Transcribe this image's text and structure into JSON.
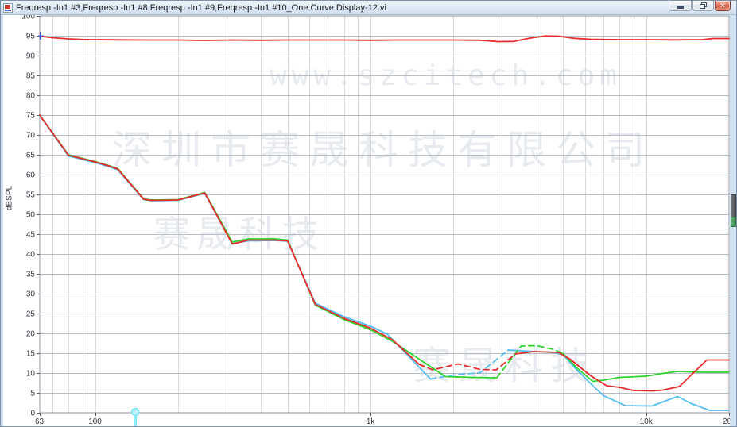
{
  "window": {
    "title": "Freqresp -In1 #3,Freqresp -In1 #8,Freqresp -In1 #9,Freqresp -In1 #10_One Curve Display-12.vi",
    "controls": [
      "minimize",
      "restore",
      "close"
    ]
  },
  "watermarks": {
    "url": "www.szcitech.com",
    "company": "深圳市赛晟科技有限公司",
    "brand1": "赛晟科技",
    "brand2": "赛晟科技"
  },
  "chart_data": {
    "type": "line",
    "x_axis": {
      "scale": "log",
      "min": 63,
      "max": 20000,
      "tick_values": [
        63,
        100,
        1000,
        10000,
        20000
      ],
      "tick_labels": [
        "63",
        "100",
        "1k",
        "10k",
        "20k"
      ],
      "gridlines": [
        70,
        80,
        90,
        100,
        200,
        300,
        400,
        500,
        600,
        700,
        800,
        900,
        1000,
        2000,
        3000,
        4000,
        5000,
        6000,
        7000,
        8000,
        9000,
        10000
      ]
    },
    "y_axis": {
      "label": "dBSPL",
      "min": 0,
      "max": 100,
      "tick_step": 5,
      "tick_labels": [
        "100",
        "95",
        "90",
        "85",
        "80",
        "75",
        "70",
        "65",
        "60",
        "55",
        "50",
        "45",
        "40",
        "35",
        "30",
        "25",
        "20",
        "15",
        "10",
        "5",
        "0"
      ]
    },
    "grid": true,
    "legend": "none",
    "series": [
      {
        "name": "reference-upper-red",
        "color": "#ea2a2c",
        "segments": [
          {
            "dash": false,
            "points": [
              [
                63,
                94.9
              ],
              [
                70,
                94.5
              ],
              [
                80,
                94.2
              ],
              [
                90,
                94.05
              ],
              [
                100,
                94.0
              ],
              [
                125,
                93.95
              ],
              [
                160,
                93.9
              ],
              [
                200,
                93.9
              ],
              [
                250,
                93.8
              ],
              [
                315,
                93.9
              ],
              [
                400,
                93.85
              ],
              [
                500,
                93.9
              ],
              [
                630,
                93.9
              ],
              [
                800,
                93.9
              ],
              [
                1000,
                93.85
              ],
              [
                1250,
                93.9
              ],
              [
                1600,
                93.9
              ],
              [
                2000,
                93.9
              ],
              [
                2500,
                93.85
              ],
              [
                2900,
                93.5
              ],
              [
                3300,
                93.55
              ],
              [
                3800,
                94.4
              ],
              [
                4300,
                94.95
              ],
              [
                4800,
                94.9
              ],
              [
                5500,
                94.35
              ],
              [
                6300,
                94.1
              ],
              [
                7000,
                94.05
              ],
              [
                8000,
                94.0
              ],
              [
                10000,
                94.0
              ],
              [
                12500,
                93.95
              ],
              [
                16000,
                94.0
              ],
              [
                17500,
                94.3
              ],
              [
                20000,
                94.3
              ]
            ]
          }
        ]
      },
      {
        "name": "curve-cyan",
        "color": "#54bef2",
        "segments": [
          {
            "dash": false,
            "points": [
              [
                63,
                74.9
              ],
              [
                80,
                64.7
              ],
              [
                100,
                63.0
              ],
              [
                112,
                62.0
              ],
              [
                121,
                61.2
              ],
              [
                150,
                53.7
              ],
              [
                160,
                53.4
              ],
              [
                200,
                53.5
              ],
              [
                224,
                54.4
              ],
              [
                250,
                55.3
              ],
              [
                315,
                42.6
              ],
              [
                360,
                43.3
              ],
              [
                450,
                43.4
              ],
              [
                500,
                43.2
              ],
              [
                630,
                27.6
              ],
              [
                800,
                24.2
              ],
              [
                1000,
                21.8
              ],
              [
                1150,
                19.8
              ],
              [
                1650,
                8.5
              ]
            ]
          },
          {
            "dash": true,
            "points": [
              [
                1650,
                8.5
              ],
              [
                2000,
                9.5
              ],
              [
                2500,
                10.1
              ],
              [
                3160,
                15.8
              ]
            ]
          },
          {
            "dash": false,
            "points": [
              [
                3160,
                15.8
              ],
              [
                4000,
                15.4
              ],
              [
                4600,
                15.2
              ],
              [
                5000,
                14.6
              ],
              [
                5600,
                10.8
              ],
              [
                6300,
                7.3
              ],
              [
                7000,
                4.3
              ],
              [
                8400,
                1.8
              ],
              [
                10500,
                1.7
              ],
              [
                13000,
                4.1
              ],
              [
                14500,
                2.4
              ],
              [
                17000,
                0.6
              ],
              [
                20000,
                0.6
              ]
            ]
          }
        ]
      },
      {
        "name": "curve-green",
        "color": "#2ed32e",
        "segments": [
          {
            "dash": false,
            "points": [
              [
                63,
                75.0
              ],
              [
                80,
                65.0
              ],
              [
                100,
                63.3
              ],
              [
                112,
                62.3
              ],
              [
                121,
                61.5
              ],
              [
                150,
                53.9
              ],
              [
                160,
                53.6
              ],
              [
                200,
                53.7
              ],
              [
                224,
                54.6
              ],
              [
                250,
                55.5
              ],
              [
                315,
                43.0
              ],
              [
                360,
                43.8
              ],
              [
                450,
                43.8
              ],
              [
                500,
                43.5
              ],
              [
                630,
                27.1
              ],
              [
                800,
                23.5
              ],
              [
                1000,
                20.9
              ],
              [
                1200,
                18.0
              ],
              [
                1870,
                9.1
              ],
              [
                2340,
                8.9
              ],
              [
                2870,
                8.8
              ]
            ]
          },
          {
            "dash": true,
            "points": [
              [
                2870,
                8.8
              ],
              [
                3520,
                16.8
              ],
              [
                4000,
                16.9
              ],
              [
                4600,
                16.0
              ],
              [
                5000,
                14.9
              ]
            ]
          },
          {
            "dash": false,
            "points": [
              [
                5000,
                14.9
              ],
              [
                5600,
                11.3
              ],
              [
                6400,
                7.9
              ],
              [
                7000,
                8.2
              ],
              [
                8000,
                8.9
              ],
              [
                10000,
                9.2
              ],
              [
                11500,
                9.9
              ],
              [
                13000,
                10.4
              ],
              [
                16000,
                10.2
              ],
              [
                20000,
                10.2
              ]
            ]
          }
        ]
      },
      {
        "name": "curve-red",
        "color": "#ea2a2c",
        "segments": [
          {
            "dash": false,
            "points": [
              [
                63,
                75.0
              ],
              [
                80,
                64.9
              ],
              [
                100,
                63.2
              ],
              [
                112,
                62.2
              ],
              [
                121,
                61.4
              ],
              [
                150,
                53.8
              ],
              [
                160,
                53.5
              ],
              [
                200,
                53.6
              ],
              [
                224,
                54.5
              ],
              [
                250,
                55.4
              ],
              [
                315,
                42.5
              ],
              [
                360,
                43.5
              ],
              [
                450,
                43.5
              ],
              [
                500,
                43.3
              ],
              [
                630,
                27.3
              ],
              [
                800,
                23.8
              ],
              [
                1000,
                21.3
              ],
              [
                1200,
                18.4
              ],
              [
                1500,
                12.2
              ]
            ]
          },
          {
            "dash": true,
            "points": [
              [
                1500,
                12.2
              ],
              [
                1680,
                10.8
              ],
              [
                2080,
                12.3
              ],
              [
                2500,
                10.9
              ],
              [
                2860,
                10.8
              ],
              [
                3350,
                14.8
              ]
            ]
          },
          {
            "dash": false,
            "points": [
              [
                3350,
                14.8
              ],
              [
                3900,
                15.4
              ],
              [
                4800,
                15.2
              ],
              [
                5300,
                13.5
              ],
              [
                6300,
                9.3
              ],
              [
                7200,
                6.8
              ],
              [
                8000,
                6.4
              ],
              [
                9000,
                5.6
              ],
              [
                10500,
                5.5
              ],
              [
                11500,
                5.7
              ],
              [
                13200,
                6.6
              ],
              [
                16600,
                13.3
              ],
              [
                20000,
                13.3
              ]
            ]
          }
        ]
      }
    ],
    "cursors": {
      "pin_frequency_hz": 140,
      "axis_marker_db": 95
    }
  },
  "colors": {
    "grid_horizontal": "#b7bcc5",
    "grid_vertical": "#d9dbdf",
    "plot_border": "#8f96a1",
    "tick_text": "#33383f",
    "cursor_pin": "#8feefb",
    "axis_marker": "#3c5ce0"
  }
}
